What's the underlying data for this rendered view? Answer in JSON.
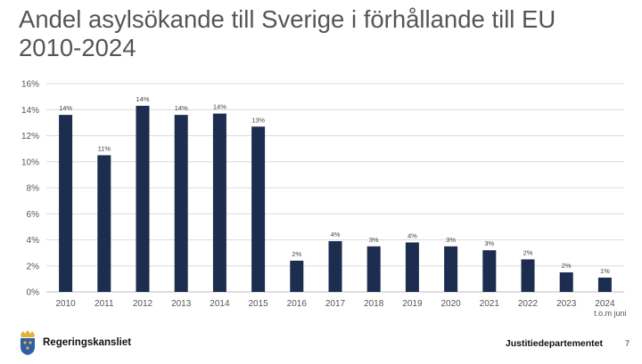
{
  "slide": {
    "title": "Andel asylsökande till Sverige i förhållande till EU 2010-2024",
    "organization": "Regeringskansliet",
    "department": "Justitiedepartementet",
    "page_number": "7"
  },
  "colors": {
    "bar": "#1c2d4f",
    "grid": "#dcdcdc",
    "text": "#555555"
  },
  "icons": {
    "logo": "crown-coat-of-arms-icon"
  },
  "chart_data": {
    "type": "bar",
    "title": "Andel asylsökande till Sverige i förhållande till EU 2010-2024",
    "xlabel": "",
    "ylabel": "",
    "ylim": [
      0,
      16
    ],
    "yticks": [
      "0%",
      "2%",
      "4%",
      "6%",
      "8%",
      "10%",
      "12%",
      "14%",
      "16%"
    ],
    "grid": true,
    "categories": [
      "2010",
      "2011",
      "2012",
      "2013",
      "2014",
      "2015",
      "2016",
      "2017",
      "2018",
      "2019",
      "2020",
      "2021",
      "2022",
      "2023",
      "2024"
    ],
    "category_sublabels": [
      "",
      "",
      "",
      "",
      "",
      "",
      "",
      "",
      "",
      "",
      "",
      "",
      "",
      "",
      "t.o.m juni"
    ],
    "values": [
      13.6,
      10.5,
      14.3,
      13.6,
      13.7,
      12.7,
      2.4,
      3.9,
      3.5,
      3.8,
      3.5,
      3.2,
      2.5,
      1.5,
      1.1
    ],
    "data_labels": [
      "14%",
      "11%",
      "14%",
      "14%",
      "14%",
      "13%",
      "2%",
      "4%",
      "3%",
      "4%",
      "3%",
      "3%",
      "2%",
      "2%",
      "1%"
    ]
  }
}
